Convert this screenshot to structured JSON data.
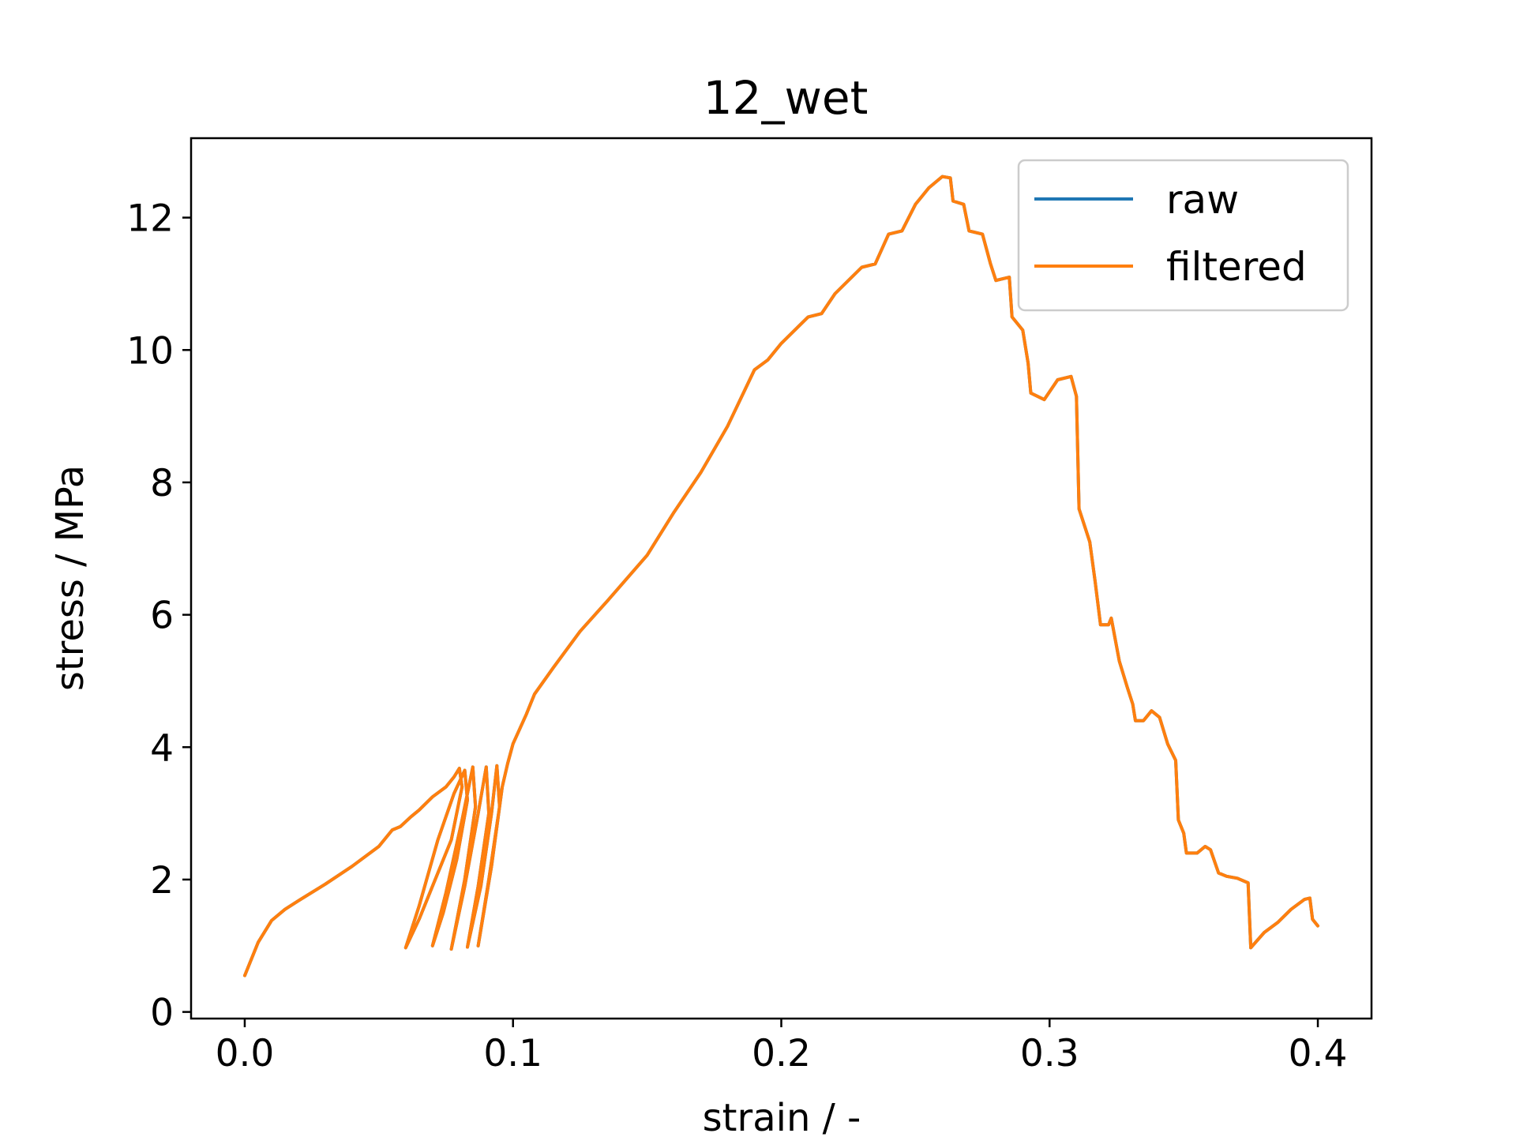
{
  "chart_data": {
    "type": "line",
    "title": "12_wet",
    "xlabel": "strain / -",
    "ylabel": "stress / MPa",
    "xlim": [
      -0.02,
      0.42
    ],
    "ylim": [
      -0.1,
      13.2
    ],
    "xticks": [
      0.0,
      0.1,
      0.2,
      0.3,
      0.4
    ],
    "xtick_labels": [
      "0.0",
      "0.1",
      "0.2",
      "0.3",
      "0.4"
    ],
    "yticks": [
      0,
      2,
      4,
      6,
      8,
      10,
      12
    ],
    "ytick_labels": [
      "0",
      "2",
      "4",
      "6",
      "8",
      "10",
      "12"
    ],
    "grid": false,
    "legend_position": "top-right",
    "series": [
      {
        "name": "raw",
        "color": "#1f77b4",
        "points": [
          [
            0.0,
            0.55
          ],
          [
            0.005,
            1.05
          ],
          [
            0.01,
            1.38
          ],
          [
            0.015,
            1.55
          ],
          [
            0.02,
            1.68
          ],
          [
            0.03,
            1.93
          ],
          [
            0.04,
            2.2
          ],
          [
            0.05,
            2.5
          ],
          [
            0.055,
            2.75
          ],
          [
            0.058,
            2.8
          ],
          [
            0.062,
            2.95
          ],
          [
            0.065,
            3.05
          ],
          [
            0.07,
            3.25
          ],
          [
            0.075,
            3.4
          ],
          [
            0.078,
            3.55
          ],
          [
            0.08,
            3.68
          ],
          [
            0.081,
            3.4
          ],
          [
            0.077,
            2.6
          ],
          [
            0.07,
            1.9
          ],
          [
            0.065,
            1.4
          ],
          [
            0.06,
            0.97
          ],
          [
            0.065,
            1.6
          ],
          [
            0.072,
            2.6
          ],
          [
            0.078,
            3.3
          ],
          [
            0.082,
            3.65
          ],
          [
            0.083,
            3.2
          ],
          [
            0.079,
            2.3
          ],
          [
            0.074,
            1.5
          ],
          [
            0.07,
            1.0
          ],
          [
            0.075,
            1.8
          ],
          [
            0.081,
            2.9
          ],
          [
            0.085,
            3.7
          ],
          [
            0.086,
            3.1
          ],
          [
            0.082,
            2.0
          ],
          [
            0.077,
            0.95
          ],
          [
            0.082,
            1.9
          ],
          [
            0.087,
            3.0
          ],
          [
            0.09,
            3.7
          ],
          [
            0.091,
            3.0
          ],
          [
            0.087,
            1.9
          ],
          [
            0.083,
            0.98
          ],
          [
            0.088,
            1.9
          ],
          [
            0.092,
            3.0
          ],
          [
            0.094,
            3.72
          ],
          [
            0.095,
            3.1
          ],
          [
            0.091,
            2.0
          ],
          [
            0.087,
            1.0
          ],
          [
            0.092,
            2.2
          ],
          [
            0.096,
            3.4
          ],
          [
            0.098,
            3.75
          ],
          [
            0.1,
            4.05
          ],
          [
            0.105,
            4.5
          ],
          [
            0.108,
            4.8
          ],
          [
            0.115,
            5.2
          ],
          [
            0.125,
            5.75
          ],
          [
            0.135,
            6.2
          ],
          [
            0.15,
            6.9
          ],
          [
            0.16,
            7.55
          ],
          [
            0.17,
            8.15
          ],
          [
            0.18,
            8.85
          ],
          [
            0.19,
            9.7
          ],
          [
            0.195,
            9.85
          ],
          [
            0.2,
            10.1
          ],
          [
            0.21,
            10.5
          ],
          [
            0.215,
            10.55
          ],
          [
            0.22,
            10.85
          ],
          [
            0.23,
            11.25
          ],
          [
            0.235,
            11.3
          ],
          [
            0.24,
            11.75
          ],
          [
            0.245,
            11.8
          ],
          [
            0.25,
            12.2
          ],
          [
            0.255,
            12.45
          ],
          [
            0.26,
            12.62
          ],
          [
            0.263,
            12.6
          ],
          [
            0.264,
            12.25
          ],
          [
            0.268,
            12.2
          ],
          [
            0.27,
            11.8
          ],
          [
            0.275,
            11.75
          ],
          [
            0.278,
            11.3
          ],
          [
            0.28,
            11.05
          ],
          [
            0.285,
            11.1
          ],
          [
            0.286,
            10.5
          ],
          [
            0.29,
            10.3
          ],
          [
            0.292,
            9.8
          ],
          [
            0.293,
            9.35
          ],
          [
            0.298,
            9.25
          ],
          [
            0.303,
            9.55
          ],
          [
            0.308,
            9.6
          ],
          [
            0.31,
            9.3
          ],
          [
            0.311,
            7.6
          ],
          [
            0.315,
            7.1
          ],
          [
            0.317,
            6.5
          ],
          [
            0.319,
            5.85
          ],
          [
            0.322,
            5.85
          ],
          [
            0.323,
            5.95
          ],
          [
            0.326,
            5.3
          ],
          [
            0.329,
            4.9
          ],
          [
            0.331,
            4.65
          ],
          [
            0.332,
            4.4
          ],
          [
            0.335,
            4.4
          ],
          [
            0.338,
            4.55
          ],
          [
            0.341,
            4.45
          ],
          [
            0.344,
            4.05
          ],
          [
            0.347,
            3.8
          ],
          [
            0.348,
            2.9
          ],
          [
            0.35,
            2.7
          ],
          [
            0.351,
            2.4
          ],
          [
            0.355,
            2.4
          ],
          [
            0.358,
            2.5
          ],
          [
            0.36,
            2.45
          ],
          [
            0.363,
            2.1
          ],
          [
            0.366,
            2.05
          ],
          [
            0.37,
            2.02
          ],
          [
            0.374,
            1.95
          ],
          [
            0.375,
            0.97
          ],
          [
            0.38,
            1.2
          ],
          [
            0.385,
            1.35
          ],
          [
            0.39,
            1.55
          ],
          [
            0.395,
            1.7
          ],
          [
            0.397,
            1.72
          ],
          [
            0.398,
            1.4
          ],
          [
            0.4,
            1.3
          ]
        ]
      },
      {
        "name": "filtered",
        "color": "#ff7f0e",
        "points": [
          [
            0.0,
            0.55
          ],
          [
            0.005,
            1.05
          ],
          [
            0.01,
            1.38
          ],
          [
            0.015,
            1.55
          ],
          [
            0.02,
            1.68
          ],
          [
            0.03,
            1.93
          ],
          [
            0.04,
            2.2
          ],
          [
            0.05,
            2.5
          ],
          [
            0.055,
            2.75
          ],
          [
            0.058,
            2.8
          ],
          [
            0.062,
            2.95
          ],
          [
            0.065,
            3.05
          ],
          [
            0.07,
            3.25
          ],
          [
            0.075,
            3.4
          ],
          [
            0.078,
            3.55
          ],
          [
            0.08,
            3.68
          ],
          [
            0.081,
            3.4
          ],
          [
            0.077,
            2.6
          ],
          [
            0.07,
            1.9
          ],
          [
            0.065,
            1.4
          ],
          [
            0.06,
            0.97
          ],
          [
            0.065,
            1.6
          ],
          [
            0.072,
            2.6
          ],
          [
            0.078,
            3.3
          ],
          [
            0.082,
            3.65
          ],
          [
            0.083,
            3.2
          ],
          [
            0.079,
            2.3
          ],
          [
            0.074,
            1.5
          ],
          [
            0.07,
            1.0
          ],
          [
            0.075,
            1.8
          ],
          [
            0.081,
            2.9
          ],
          [
            0.085,
            3.7
          ],
          [
            0.086,
            3.1
          ],
          [
            0.082,
            2.0
          ],
          [
            0.077,
            0.95
          ],
          [
            0.082,
            1.9
          ],
          [
            0.087,
            3.0
          ],
          [
            0.09,
            3.7
          ],
          [
            0.091,
            3.0
          ],
          [
            0.087,
            1.9
          ],
          [
            0.083,
            0.98
          ],
          [
            0.088,
            1.9
          ],
          [
            0.092,
            3.0
          ],
          [
            0.094,
            3.72
          ],
          [
            0.095,
            3.1
          ],
          [
            0.091,
            2.0
          ],
          [
            0.087,
            1.0
          ],
          [
            0.092,
            2.2
          ],
          [
            0.096,
            3.4
          ],
          [
            0.098,
            3.75
          ],
          [
            0.1,
            4.05
          ],
          [
            0.105,
            4.5
          ],
          [
            0.108,
            4.8
          ],
          [
            0.115,
            5.2
          ],
          [
            0.125,
            5.75
          ],
          [
            0.135,
            6.2
          ],
          [
            0.15,
            6.9
          ],
          [
            0.16,
            7.55
          ],
          [
            0.17,
            8.15
          ],
          [
            0.18,
            8.85
          ],
          [
            0.19,
            9.7
          ],
          [
            0.195,
            9.85
          ],
          [
            0.2,
            10.1
          ],
          [
            0.21,
            10.5
          ],
          [
            0.215,
            10.55
          ],
          [
            0.22,
            10.85
          ],
          [
            0.23,
            11.25
          ],
          [
            0.235,
            11.3
          ],
          [
            0.24,
            11.75
          ],
          [
            0.245,
            11.8
          ],
          [
            0.25,
            12.2
          ],
          [
            0.255,
            12.45
          ],
          [
            0.26,
            12.62
          ],
          [
            0.263,
            12.6
          ],
          [
            0.264,
            12.25
          ],
          [
            0.268,
            12.2
          ],
          [
            0.27,
            11.8
          ],
          [
            0.275,
            11.75
          ],
          [
            0.278,
            11.3
          ],
          [
            0.28,
            11.05
          ],
          [
            0.285,
            11.1
          ],
          [
            0.286,
            10.5
          ],
          [
            0.29,
            10.3
          ],
          [
            0.292,
            9.8
          ],
          [
            0.293,
            9.35
          ],
          [
            0.298,
            9.25
          ],
          [
            0.303,
            9.55
          ],
          [
            0.308,
            9.6
          ],
          [
            0.31,
            9.3
          ],
          [
            0.311,
            7.6
          ],
          [
            0.315,
            7.1
          ],
          [
            0.317,
            6.5
          ],
          [
            0.319,
            5.85
          ],
          [
            0.322,
            5.85
          ],
          [
            0.323,
            5.95
          ],
          [
            0.326,
            5.3
          ],
          [
            0.329,
            4.9
          ],
          [
            0.331,
            4.65
          ],
          [
            0.332,
            4.4
          ],
          [
            0.335,
            4.4
          ],
          [
            0.338,
            4.55
          ],
          [
            0.341,
            4.45
          ],
          [
            0.344,
            4.05
          ],
          [
            0.347,
            3.8
          ],
          [
            0.348,
            2.9
          ],
          [
            0.35,
            2.7
          ],
          [
            0.351,
            2.4
          ],
          [
            0.355,
            2.4
          ],
          [
            0.358,
            2.5
          ],
          [
            0.36,
            2.45
          ],
          [
            0.363,
            2.1
          ],
          [
            0.366,
            2.05
          ],
          [
            0.37,
            2.02
          ],
          [
            0.374,
            1.95
          ],
          [
            0.375,
            0.97
          ],
          [
            0.38,
            1.2
          ],
          [
            0.385,
            1.35
          ],
          [
            0.39,
            1.55
          ],
          [
            0.395,
            1.7
          ],
          [
            0.397,
            1.72
          ],
          [
            0.398,
            1.4
          ],
          [
            0.4,
            1.3
          ]
        ]
      }
    ]
  }
}
